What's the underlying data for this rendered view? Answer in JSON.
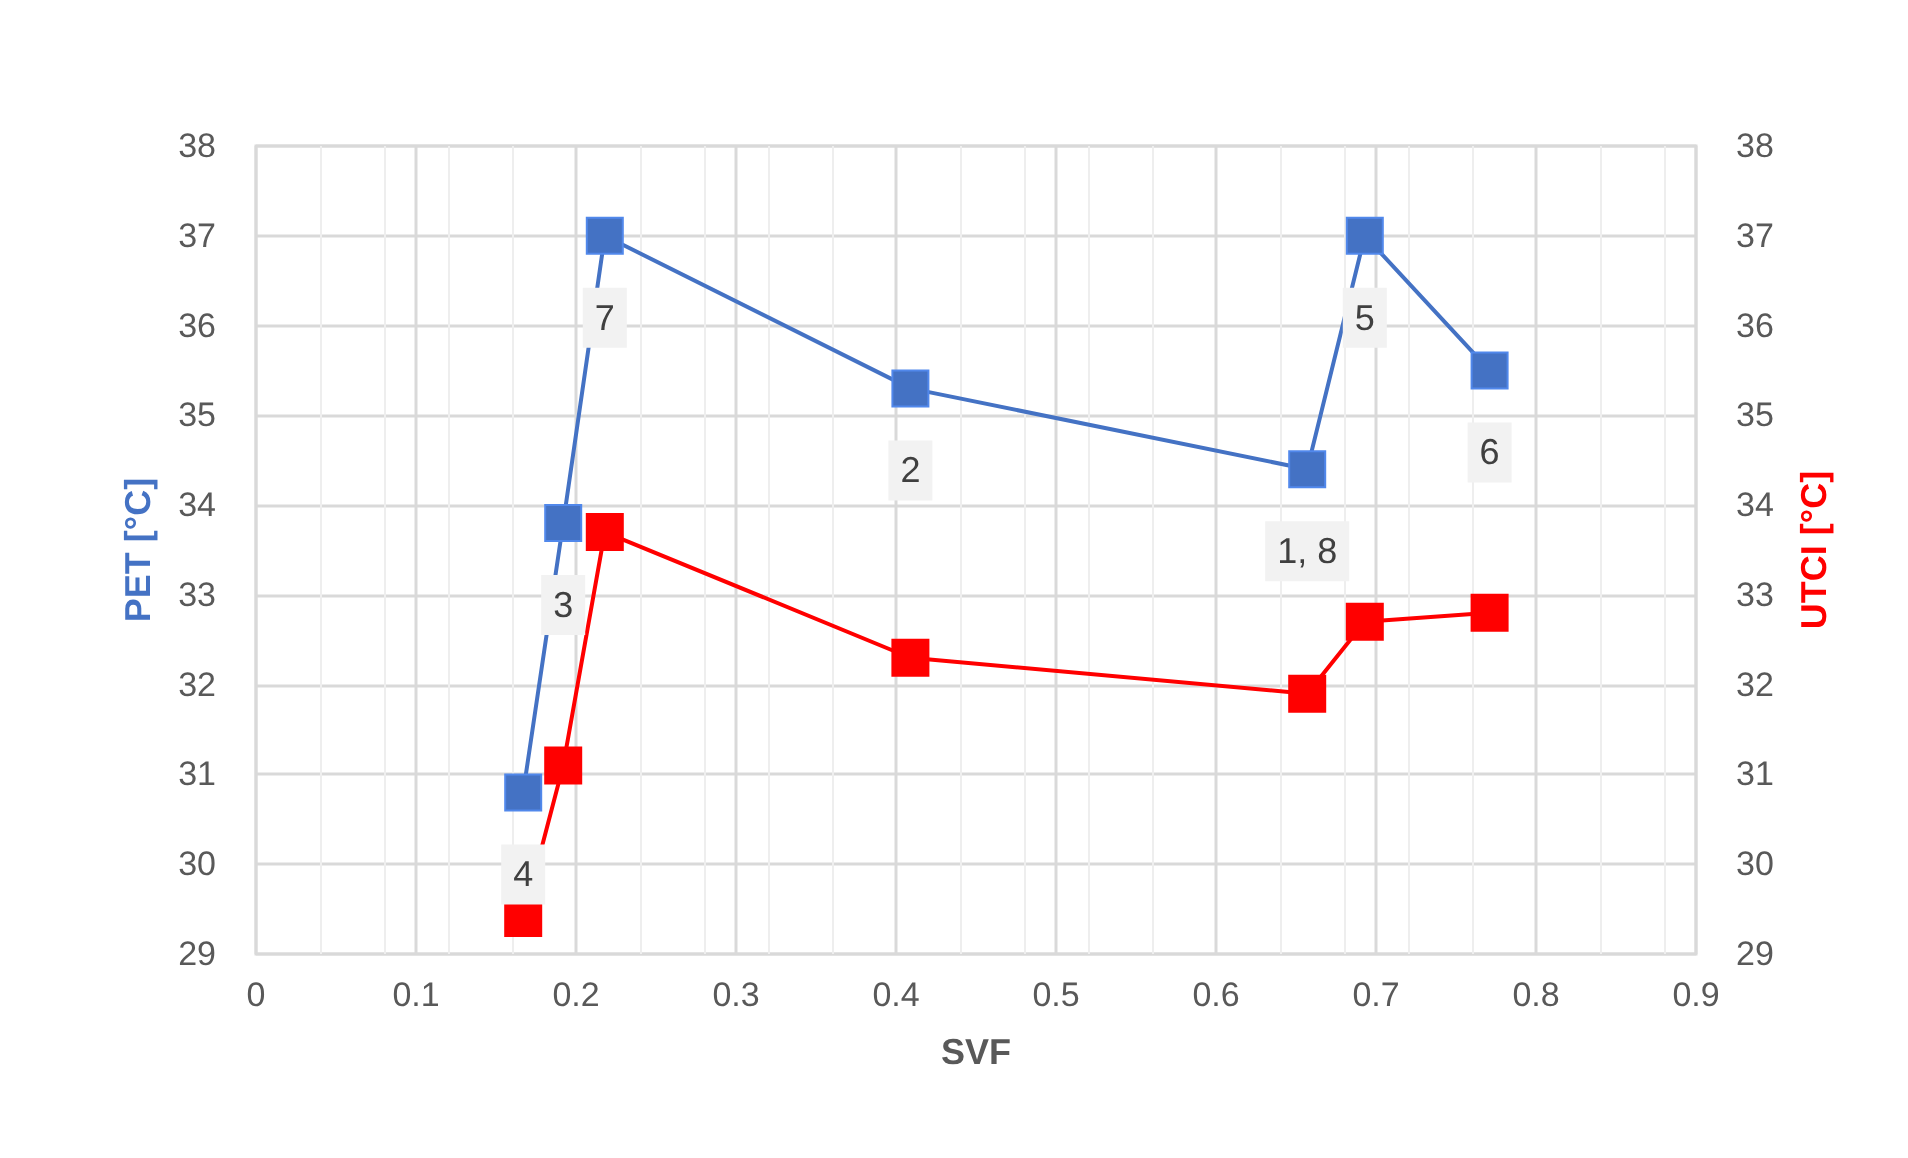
{
  "chart_data": {
    "type": "line",
    "xlabel": "SVF",
    "ylabel": "PET [°C]",
    "y2label": "UTCI [°C]",
    "x": [
      0.167,
      0.192,
      0.218,
      0.409,
      0.657,
      0.693,
      0.771
    ],
    "series": [
      {
        "color": "#4472c4",
        "values": [
          30.8,
          33.8,
          37.0,
          35.3,
          34.4,
          37.0,
          35.5
        ]
      },
      {
        "color": "#ff0000",
        "axis": "y2",
        "values": [
          29.4,
          31.1,
          33.7,
          32.3,
          31.9,
          32.7,
          32.8
        ]
      }
    ],
    "annotations": [
      {
        "text": "4",
        "x": 0.167,
        "y": 30.8
      },
      {
        "text": "3",
        "x": 0.192,
        "y": 33.8
      },
      {
        "text": "7",
        "x": 0.218,
        "y": 37.0
      },
      {
        "text": "2",
        "x": 0.409,
        "y": 35.3
      },
      {
        "text": "1, 8",
        "x": 0.657,
        "y": 34.4
      },
      {
        "text": "5",
        "x": 0.693,
        "y": 37.0
      },
      {
        "text": "6",
        "x": 0.771,
        "y": 35.5
      }
    ],
    "xlim": [
      0,
      0.9
    ],
    "xticks": [
      0,
      0.1,
      0.2,
      0.3,
      0.4,
      0.5,
      0.6,
      0.7,
      0.8,
      0.9
    ],
    "ylim": [
      29,
      38
    ],
    "yticks": [
      29,
      30,
      31,
      32,
      33,
      34,
      35,
      36,
      37,
      38
    ],
    "y2lim": [
      29,
      38
    ],
    "y2ticks": [
      29,
      30,
      31,
      32,
      33,
      34,
      35,
      36,
      37,
      38
    ],
    "grid": true,
    "marker": "square",
    "line_style": "solid"
  }
}
